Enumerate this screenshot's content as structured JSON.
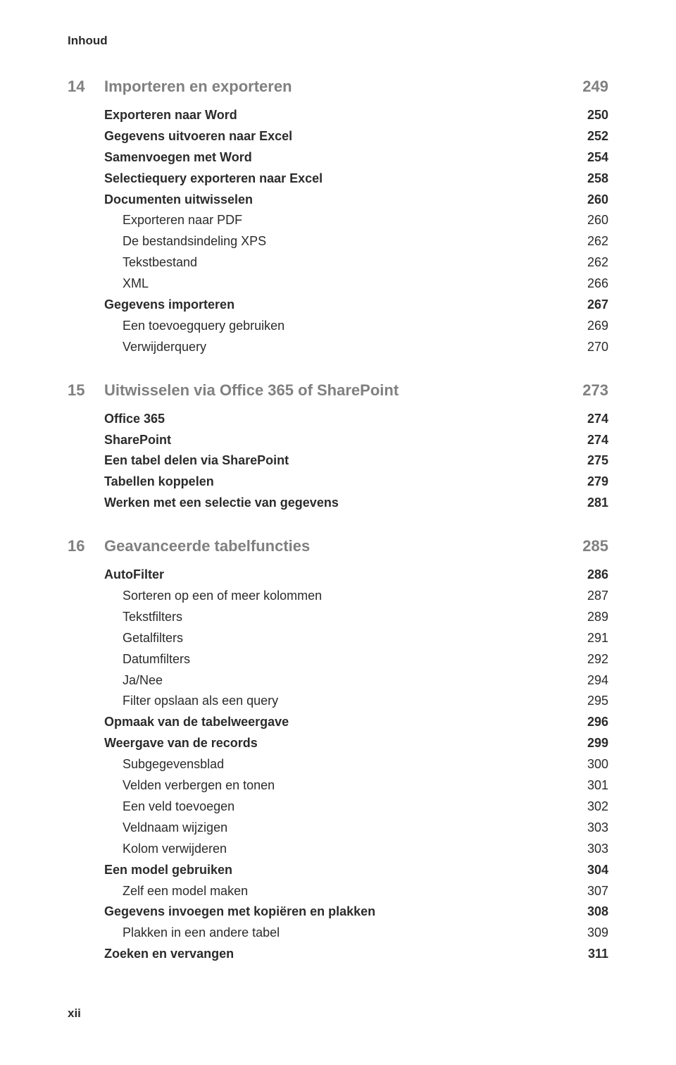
{
  "running_head": "Inhoud",
  "footer": "xii",
  "colors": {
    "text": "#2b2b2b",
    "muted": "#808080",
    "background": "#ffffff"
  },
  "typography": {
    "body_fontsize_pt": 13,
    "chapter_fontsize_pt": 16,
    "line_height": 1.55
  },
  "chapters": [
    {
      "number": "14",
      "title": "Importeren en exporteren",
      "page": "249",
      "entries": [
        {
          "level": 1,
          "label": "Exporteren naar Word",
          "page": "250"
        },
        {
          "level": 1,
          "label": "Gegevens uitvoeren naar Excel",
          "page": "252"
        },
        {
          "level": 1,
          "label": "Samenvoegen met Word",
          "page": "254"
        },
        {
          "level": 1,
          "label": "Selectiequery exporteren naar Excel",
          "page": "258"
        },
        {
          "level": 1,
          "label": "Documenten uitwisselen",
          "page": "260"
        },
        {
          "level": 2,
          "label": "Exporteren naar PDF",
          "page": "260"
        },
        {
          "level": 2,
          "label": "De bestandsindeling XPS",
          "page": "262"
        },
        {
          "level": 2,
          "label": "Tekstbestand",
          "page": "262"
        },
        {
          "level": 2,
          "label": "XML",
          "page": "266"
        },
        {
          "level": 1,
          "label": "Gegevens importeren",
          "page": "267"
        },
        {
          "level": 2,
          "label": "Een toevoegquery gebruiken",
          "page": "269"
        },
        {
          "level": 2,
          "label": "Verwijderquery",
          "page": "270"
        }
      ]
    },
    {
      "number": "15",
      "title": "Uitwisselen via Office 365 of SharePoint",
      "page": "273",
      "entries": [
        {
          "level": 1,
          "label": "Office 365",
          "page": "274"
        },
        {
          "level": 1,
          "label": "SharePoint",
          "page": "274"
        },
        {
          "level": 1,
          "label": "Een tabel delen via SharePoint",
          "page": "275"
        },
        {
          "level": 1,
          "label": "Tabellen koppelen",
          "page": "279"
        },
        {
          "level": 1,
          "label": "Werken met een selectie van gegevens",
          "page": "281"
        }
      ]
    },
    {
      "number": "16",
      "title": "Geavanceerde tabelfuncties",
      "page": "285",
      "entries": [
        {
          "level": 1,
          "label": "AutoFilter",
          "page": "286"
        },
        {
          "level": 2,
          "label": "Sorteren op een of meer kolommen",
          "page": "287"
        },
        {
          "level": 2,
          "label": "Tekstfilters",
          "page": "289"
        },
        {
          "level": 2,
          "label": "Getalfilters",
          "page": "291"
        },
        {
          "level": 2,
          "label": "Datumfilters",
          "page": "292"
        },
        {
          "level": 2,
          "label": "Ja/Nee",
          "page": "294"
        },
        {
          "level": 2,
          "label": "Filter opslaan als een query",
          "page": "295"
        },
        {
          "level": 1,
          "label": "Opmaak van de tabelweergave",
          "page": "296"
        },
        {
          "level": 1,
          "label": "Weergave van de records",
          "page": "299"
        },
        {
          "level": 2,
          "label": "Subgegevensblad",
          "page": "300"
        },
        {
          "level": 2,
          "label": "Velden verbergen en tonen",
          "page": "301"
        },
        {
          "level": 2,
          "label": "Een veld toevoegen",
          "page": "302"
        },
        {
          "level": 2,
          "label": "Veldnaam wijzigen",
          "page": "303"
        },
        {
          "level": 2,
          "label": "Kolom verwijderen",
          "page": "303"
        },
        {
          "level": 1,
          "label": "Een model gebruiken",
          "page": "304"
        },
        {
          "level": 2,
          "label": "Zelf een model maken",
          "page": "307"
        },
        {
          "level": 1,
          "label": "Gegevens invoegen met kopiëren en plakken",
          "page": "308"
        },
        {
          "level": 2,
          "label": "Plakken in een andere tabel",
          "page": "309"
        },
        {
          "level": 1,
          "label": "Zoeken en vervangen",
          "page": "311"
        }
      ]
    }
  ]
}
